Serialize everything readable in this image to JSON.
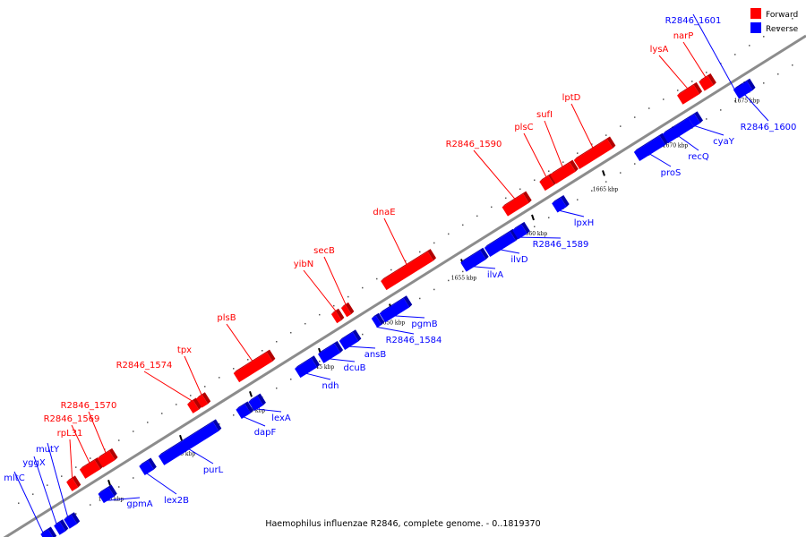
{
  "legend": {
    "forward": {
      "label": "Forward",
      "color": "#ff0000",
      "dark": "#b30000"
    },
    "reverse": {
      "label": "Reverse",
      "color": "#0000ff",
      "dark": "#0000aa"
    }
  },
  "caption": "Haemophilus influenzae R2846, complete genome. - 0..1819370",
  "scale": {
    "unit": "kbp",
    "tick_labels": [
      "1630 kbp",
      "1635 kbp",
      "1640 kbp",
      "1645 kbp",
      "1650 kbp",
      "1655 kbp",
      "1660 kbp",
      "1665 kbp",
      "1670 kbp",
      "1675 kbp"
    ]
  },
  "genes": [
    {
      "name": "mltC",
      "strand": "reverse"
    },
    {
      "name": "yggX",
      "strand": "reverse"
    },
    {
      "name": "mutY",
      "strand": "reverse"
    },
    {
      "name": "rpL31",
      "strand": "forward"
    },
    {
      "name": "R2846_1569",
      "strand": "forward"
    },
    {
      "name": "R2846_1570",
      "strand": "forward"
    },
    {
      "name": "gpmA",
      "strand": "reverse"
    },
    {
      "name": "lex2B",
      "strand": "reverse"
    },
    {
      "name": "purL",
      "strand": "reverse"
    },
    {
      "name": "R2846_1574",
      "strand": "forward"
    },
    {
      "name": "tpx",
      "strand": "forward"
    },
    {
      "name": "dapF",
      "strand": "reverse"
    },
    {
      "name": "lexA",
      "strand": "reverse"
    },
    {
      "name": "plsB",
      "strand": "forward"
    },
    {
      "name": "ndh",
      "strand": "reverse"
    },
    {
      "name": "dcuB",
      "strand": "reverse"
    },
    {
      "name": "ansB",
      "strand": "reverse"
    },
    {
      "name": "R2846_1584",
      "strand": "reverse"
    },
    {
      "name": "yibN",
      "strand": "forward"
    },
    {
      "name": "secB",
      "strand": "forward"
    },
    {
      "name": "pgmB",
      "strand": "reverse"
    },
    {
      "name": "dnaE",
      "strand": "forward"
    },
    {
      "name": "ilvA",
      "strand": "reverse"
    },
    {
      "name": "ilvD",
      "strand": "reverse"
    },
    {
      "name": "R2846_1589",
      "strand": "reverse"
    },
    {
      "name": "R2846_1590",
      "strand": "forward"
    },
    {
      "name": "lpxH",
      "strand": "reverse"
    },
    {
      "name": "plsC",
      "strand": "forward"
    },
    {
      "name": "sufI",
      "strand": "forward"
    },
    {
      "name": "lptD",
      "strand": "forward"
    },
    {
      "name": "proS",
      "strand": "reverse"
    },
    {
      "name": "recQ",
      "strand": "reverse"
    },
    {
      "name": "cyaY",
      "strand": "reverse"
    },
    {
      "name": "lysA",
      "strand": "forward"
    },
    {
      "name": "narP",
      "strand": "forward"
    },
    {
      "name": "R2846_1601",
      "strand": "reverse"
    },
    {
      "name": "R2846_1600",
      "strand": "reverse"
    }
  ]
}
